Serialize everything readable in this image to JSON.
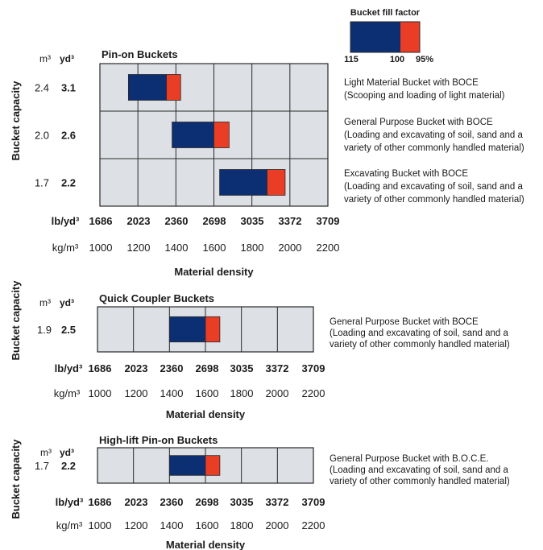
{
  "legend": {
    "title": "Bucket fill factor",
    "labels": [
      "115",
      "100",
      "95%"
    ]
  },
  "colors": {
    "panel_bg": "#dde0e4",
    "grid": "#2a2a2a",
    "navy": "#0c2f73",
    "red": "#ea3d25"
  },
  "chart_data": [
    {
      "type": "bar",
      "title": "Pin-on Buckets",
      "xlabel": "Material density",
      "ylabel": "Bucket capacity",
      "unit_headers": [
        "m³",
        "yd³"
      ],
      "x_ticks_lb": {
        "unit": "lb/yd³",
        "labels": [
          "1686",
          "2023",
          "2360",
          "2698",
          "3035",
          "3372",
          "3709"
        ]
      },
      "x_ticks_kg": {
        "unit": "kg/m³",
        "labels": [
          "1000",
          "1200",
          "1400",
          "1600",
          "1800",
          "2000",
          "2200"
        ]
      },
      "xlim": [
        1000,
        2200
      ],
      "rows": [
        {
          "m3": "2.4",
          "yd3": "3.1",
          "start": 1150,
          "mid": 1350,
          "end": 1425,
          "desc": [
            "Light Material Bucket with BOCE",
            "(Scooping and loading of light material)"
          ]
        },
        {
          "m3": "2.0",
          "yd3": "2.6",
          "start": 1380,
          "mid": 1600,
          "end": 1680,
          "desc": [
            "General Purpose Bucket with BOCE",
            "(Loading and excavating of soil, sand and a",
            "variety of other commonly handled material)"
          ]
        },
        {
          "m3": "1.7",
          "yd3": "2.2",
          "start": 1630,
          "mid": 1880,
          "end": 1975,
          "desc": [
            "Excavating Bucket with BOCE",
            "(Loading and excavating of soil, sand and a",
            "variety of other commonly handled material)"
          ]
        }
      ]
    },
    {
      "type": "bar",
      "title": "Quick Coupler Buckets",
      "xlabel": "Material density",
      "ylabel": "Bucket capacity",
      "unit_headers": [
        "m³",
        "yd³"
      ],
      "x_ticks_lb": {
        "unit": "lb/yd³",
        "labels": [
          "1686",
          "2023",
          "2360",
          "2698",
          "3035",
          "3372",
          "3709"
        ]
      },
      "x_ticks_kg": {
        "unit": "kg/m³",
        "labels": [
          "1000",
          "1200",
          "1400",
          "1600",
          "1800",
          "2000",
          "2200"
        ]
      },
      "xlim": [
        1000,
        2200
      ],
      "rows": [
        {
          "m3": "1.9",
          "yd3": "2.5",
          "start": 1400,
          "mid": 1600,
          "end": 1680,
          "desc": [
            "General Purpose Bucket with BOCE",
            "(Loading and excavating of soil, sand and a",
            "variety of other commonly handled material)"
          ]
        }
      ]
    },
    {
      "type": "bar",
      "title": "High-lift Pin-on Buckets",
      "xlabel": "Material density",
      "ylabel": "Bucket capacity",
      "unit_headers": [
        "m³",
        "yd³"
      ],
      "x_ticks_lb": {
        "unit": "lb/yd³",
        "labels": [
          "1686",
          "2023",
          "2360",
          "2698",
          "3035",
          "3372",
          "3709"
        ]
      },
      "x_ticks_kg": {
        "unit": "kg/m³",
        "labels": [
          "1000",
          "1200",
          "1400",
          "1600",
          "1800",
          "2000",
          "2200"
        ]
      },
      "xlim": [
        1000,
        2200
      ],
      "rows": [
        {
          "m3": "1.7",
          "yd3": "2.2",
          "start": 1400,
          "mid": 1600,
          "end": 1680,
          "desc": [
            "General Purpose Bucket with B.O.C.E.",
            "(Loading and excavating of soil, sand and a",
            "variety of other commonly handled material)"
          ]
        }
      ]
    }
  ]
}
